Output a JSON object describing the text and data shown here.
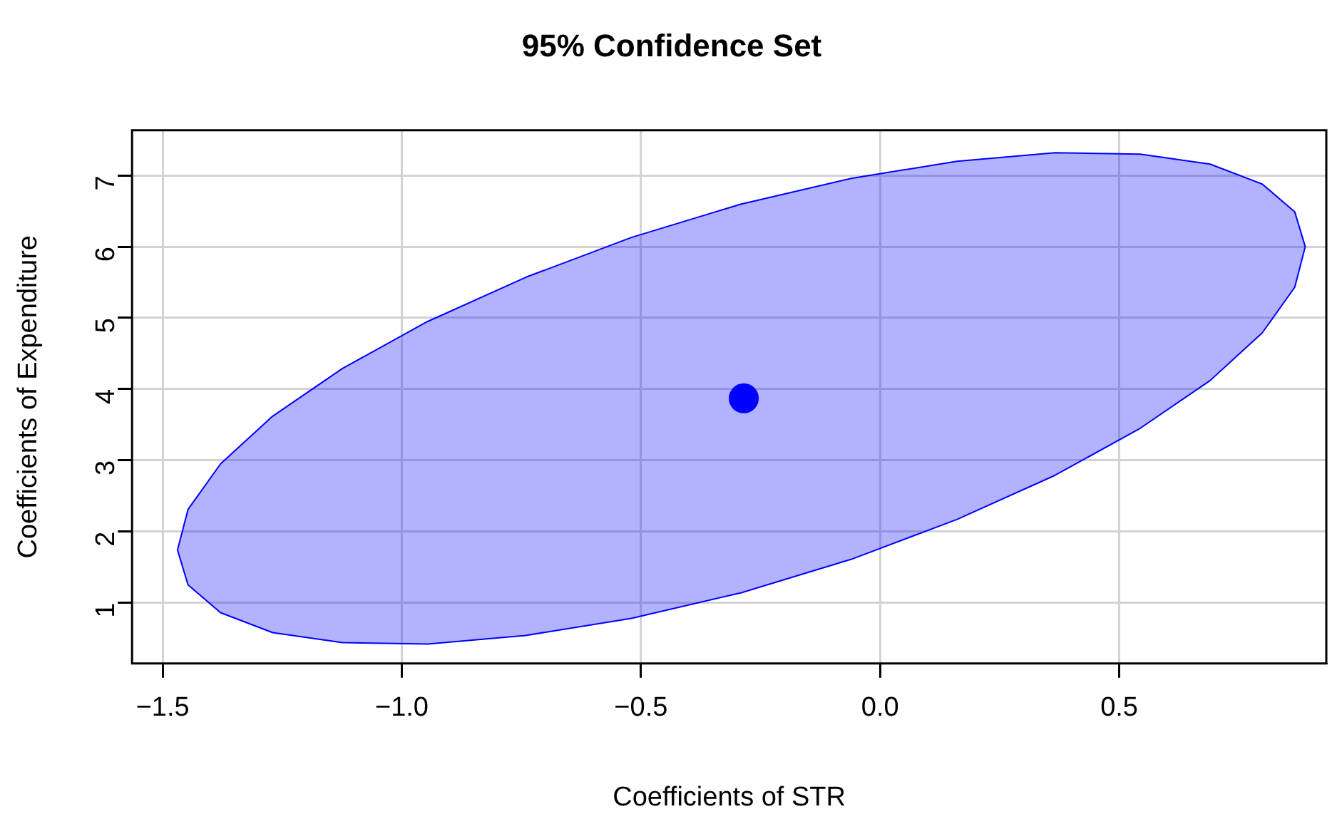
{
  "chart_data": {
    "type": "scatter",
    "title": "95% Confidence Set",
    "xlabel": "Coefficients of STR",
    "ylabel": "Coefficients of Expenditure",
    "xlim": [
      -1.564,
      0.933
    ],
    "ylim": [
      0.146,
      7.635
    ],
    "xticks": [
      {
        "value": -1.5,
        "label": "−1.5"
      },
      {
        "value": -1.0,
        "label": "−1.0"
      },
      {
        "value": -0.5,
        "label": "−0.5"
      },
      {
        "value": 0,
        "label": "0.0"
      },
      {
        "value": 0.5,
        "label": "0.5"
      }
    ],
    "yticks": [
      1,
      2,
      3,
      4,
      5,
      6,
      7
    ],
    "grid": true,
    "legend": false,
    "series": [
      {
        "type": "area",
        "marker": "none",
        "color": "#0000ff",
        "x": [
          0.889,
          0.867,
          0.799,
          0.69,
          0.544,
          0.366,
          0.161,
          -0.06,
          -0.29,
          -0.52,
          -0.741,
          -0.946,
          -1.124,
          -1.27,
          -1.379,
          -1.447,
          -1.469,
          -1.447,
          -1.379,
          -1.27,
          -1.124,
          -0.946,
          -0.741,
          -0.52,
          -0.29,
          -0.06,
          0.161,
          0.366,
          0.544,
          0.69,
          0.799,
          0.867,
          0.889
        ],
        "values": [
          6.0,
          6.49,
          6.88,
          7.16,
          7.3,
          7.32,
          7.2,
          6.96,
          6.6,
          6.13,
          5.57,
          4.95,
          4.29,
          3.62,
          2.95,
          2.31,
          1.74,
          1.25,
          0.86,
          0.58,
          0.44,
          0.42,
          0.54,
          0.78,
          1.14,
          1.61,
          2.17,
          2.79,
          3.45,
          4.12,
          4.79,
          5.43,
          6.0
        ]
      },
      {
        "type": "scatter",
        "marker": "circle",
        "color": "#0000ff",
        "x": [
          -0.285
        ],
        "values": [
          3.87
        ]
      }
    ]
  }
}
